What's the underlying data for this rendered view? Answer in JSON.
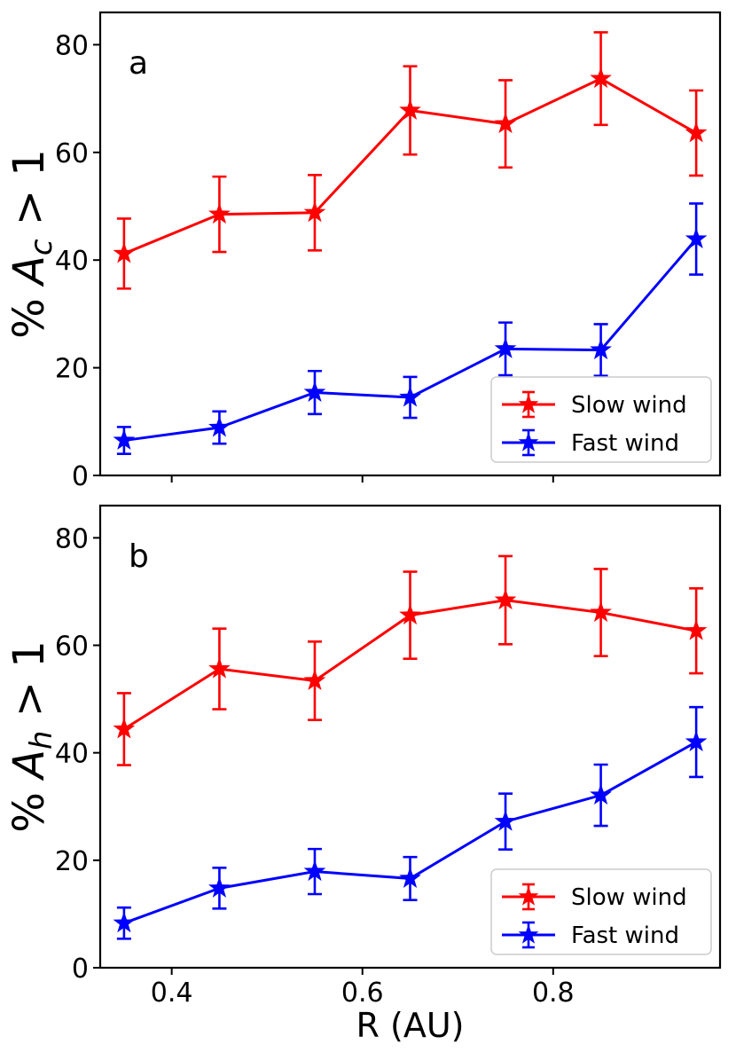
{
  "colors": {
    "slow": "#ff0000",
    "fast": "#0000ff",
    "axis": "#000000"
  },
  "chart_data": [
    {
      "type": "line",
      "panel_label": "a",
      "ylabel_prefix": "% ",
      "ylabel_var": "A",
      "ylabel_sub": "c",
      "ylabel_suffix": " > 1",
      "xlabel": "",
      "xlim": [
        0.325,
        0.975
      ],
      "ylim": [
        0,
        86
      ],
      "xticks": [
        0.4,
        0.6,
        0.8
      ],
      "xtick_labels": [
        "",
        "",
        ""
      ],
      "yticks": [
        0,
        20,
        40,
        60,
        80
      ],
      "ytick_labels": [
        "0",
        "20",
        "40",
        "60",
        "80"
      ],
      "legend_position": "lower-right",
      "x": [
        0.35,
        0.45,
        0.55,
        0.65,
        0.75,
        0.85,
        0.95
      ],
      "series": [
        {
          "name": "Slow wind",
          "color_key": "slow",
          "values": [
            41.2,
            48.5,
            48.8,
            67.8,
            65.3,
            73.7,
            63.6
          ],
          "err": [
            6.5,
            7.0,
            7.0,
            8.2,
            8.1,
            8.6,
            7.9
          ]
        },
        {
          "name": "Fast wind",
          "color_key": "fast",
          "values": [
            6.5,
            8.9,
            15.4,
            14.5,
            23.5,
            23.3,
            43.9
          ],
          "err": [
            2.5,
            3.0,
            4.0,
            3.8,
            4.9,
            4.8,
            6.6
          ]
        }
      ]
    },
    {
      "type": "line",
      "panel_label": "b",
      "ylabel_prefix": "% ",
      "ylabel_var": "A",
      "ylabel_sub": "h",
      "ylabel_suffix": " > 1",
      "xlabel": "R (AU)",
      "xlim": [
        0.325,
        0.975
      ],
      "ylim": [
        0,
        86
      ],
      "xticks": [
        0.4,
        0.6,
        0.8
      ],
      "xtick_labels": [
        "0.4",
        "0.6",
        "0.8"
      ],
      "yticks": [
        0,
        20,
        40,
        60,
        80
      ],
      "ytick_labels": [
        "0",
        "20",
        "40",
        "60",
        "80"
      ],
      "legend_position": "lower-right",
      "x": [
        0.35,
        0.45,
        0.55,
        0.65,
        0.75,
        0.85,
        0.95
      ],
      "series": [
        {
          "name": "Slow wind",
          "color_key": "slow",
          "values": [
            44.4,
            55.6,
            53.4,
            65.6,
            68.4,
            66.1,
            62.7
          ],
          "err": [
            6.7,
            7.5,
            7.3,
            8.1,
            8.2,
            8.1,
            7.9
          ]
        },
        {
          "name": "Fast wind",
          "color_key": "fast",
          "values": [
            8.3,
            14.8,
            17.9,
            16.6,
            27.2,
            32.1,
            42.0
          ],
          "err": [
            2.9,
            3.8,
            4.2,
            4.0,
            5.2,
            5.7,
            6.5
          ]
        }
      ]
    }
  ]
}
